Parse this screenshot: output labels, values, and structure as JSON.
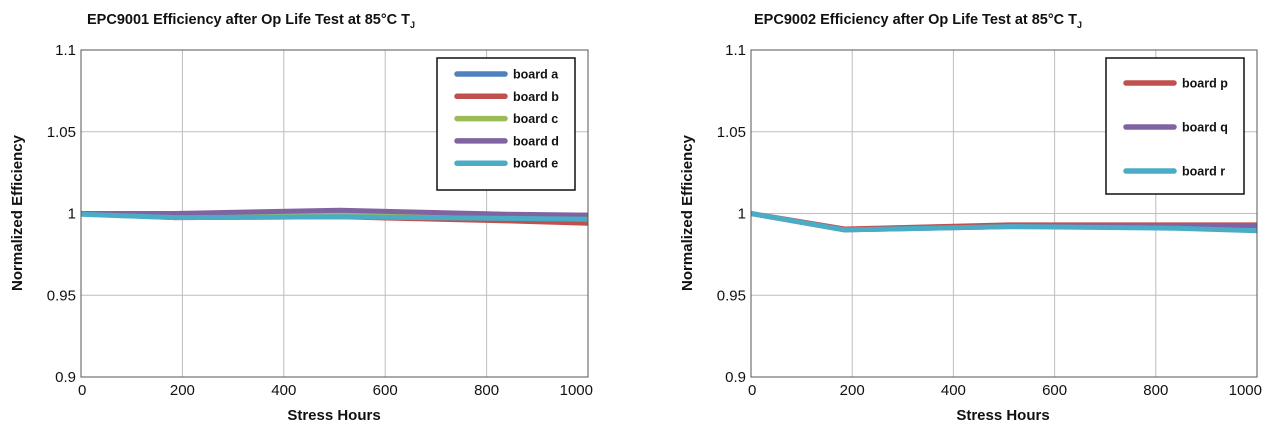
{
  "chart_data": [
    {
      "type": "line",
      "title": "EPC9001 Efficiency after Op Life Test at 85°C T",
      "title_subscript": "J",
      "xlabel": "Stress Hours",
      "ylabel": "Normalized Efficiency",
      "xlim": [
        0,
        1000
      ],
      "ylim": [
        0.9,
        1.1
      ],
      "x_ticks": [
        0,
        200,
        400,
        600,
        800,
        1000
      ],
      "x_tick_labels": [
        "0",
        "200",
        "400",
        "600",
        "800",
        "1000"
      ],
      "y_ticks": [
        0.9,
        0.95,
        1,
        1.05,
        1.1
      ],
      "y_tick_labels": [
        "0.9",
        "0.95",
        "1",
        "1.05",
        "1.1"
      ],
      "grid": true,
      "legend_position": "top-right",
      "series": [
        {
          "name": "board a",
          "color": "#4f81bd",
          "x": [
            0,
            185,
            510,
            840,
            1000
          ],
          "y": [
            1.0,
            0.9985,
            0.999,
            0.9975,
            0.997
          ]
        },
        {
          "name": "board b",
          "color": "#c0504d",
          "x": [
            0,
            185,
            510,
            840,
            1000
          ],
          "y": [
            1.0,
            0.9975,
            0.998,
            0.9955,
            0.994
          ]
        },
        {
          "name": "board c",
          "color": "#9bbb59",
          "x": [
            0,
            185,
            510,
            840,
            1000
          ],
          "y": [
            1.0,
            0.999,
            1.0005,
            0.999,
            0.999
          ]
        },
        {
          "name": "board d",
          "color": "#8064a2",
          "x": [
            0,
            185,
            510,
            840,
            1000
          ],
          "y": [
            1.0,
            1.0,
            1.002,
            0.9995,
            0.999
          ]
        },
        {
          "name": "board e",
          "color": "#4bacc6",
          "x": [
            0,
            185,
            510,
            840,
            1000
          ],
          "y": [
            0.9995,
            0.9975,
            0.998,
            0.997,
            0.9965
          ]
        }
      ]
    },
    {
      "type": "line",
      "title": "EPC9002 Efficiency after Op Life Test at 85°C T",
      "title_subscript": "J",
      "xlabel": "Stress Hours",
      "ylabel": "Normalized Efficiency",
      "xlim": [
        0,
        1000
      ],
      "ylim": [
        0.9,
        1.1
      ],
      "x_ticks": [
        0,
        200,
        400,
        600,
        800,
        1000
      ],
      "x_tick_labels": [
        "0",
        "200",
        "400",
        "600",
        "800",
        "1000"
      ],
      "y_ticks": [
        0.9,
        0.95,
        1,
        1.05,
        1.1
      ],
      "y_tick_labels": [
        "0.9",
        "0.95",
        "1",
        "1.05",
        "1.1"
      ],
      "grid": true,
      "legend_position": "top-right",
      "series": [
        {
          "name": "board p",
          "color": "#c0504d",
          "x": [
            0,
            185,
            510,
            840,
            1000
          ],
          "y": [
            1.0,
            0.9905,
            0.993,
            0.993,
            0.993
          ]
        },
        {
          "name": "board q",
          "color": "#8064a2",
          "x": [
            0,
            185,
            510,
            840,
            1000
          ],
          "y": [
            1.0,
            0.99,
            0.992,
            0.992,
            0.9925
          ]
        },
        {
          "name": "board r",
          "color": "#4bacc6",
          "x": [
            0,
            185,
            510,
            840,
            1000
          ],
          "y": [
            1.0,
            0.99,
            0.992,
            0.991,
            0.9895
          ]
        }
      ]
    }
  ]
}
